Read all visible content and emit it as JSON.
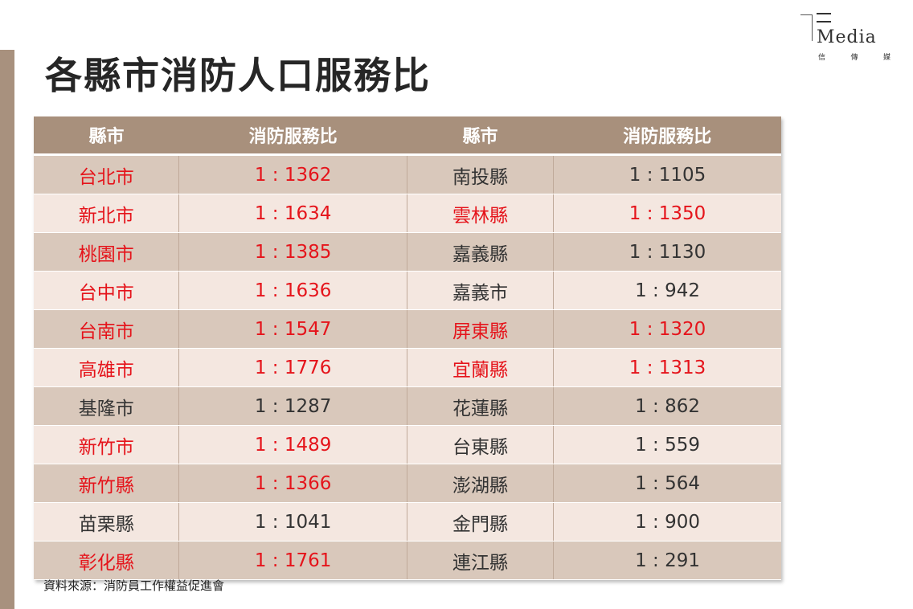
{
  "title": "各縣市消防人口服務比",
  "logo": {
    "word": "Media",
    "cn": [
      "信",
      "傳",
      "媒"
    ]
  },
  "table": {
    "headers": [
      "縣市",
      "消防服務比",
      "縣市",
      "消防服務比"
    ],
    "rows": [
      {
        "left": {
          "name": "台北市",
          "ratio": "1 : 1362",
          "highlight": true
        },
        "right": {
          "name": "南投縣",
          "ratio": "1 : 1105",
          "highlight": false
        }
      },
      {
        "left": {
          "name": "新北市",
          "ratio": "1 : 1634",
          "highlight": true
        },
        "right": {
          "name": "雲林縣",
          "ratio": "1 : 1350",
          "highlight": true
        }
      },
      {
        "left": {
          "name": "桃園市",
          "ratio": "1 : 1385",
          "highlight": true
        },
        "right": {
          "name": "嘉義縣",
          "ratio": "1 : 1130",
          "highlight": false
        }
      },
      {
        "left": {
          "name": "台中市",
          "ratio": "1 : 1636",
          "highlight": true
        },
        "right": {
          "name": "嘉義市",
          "ratio": "1 : 942",
          "highlight": false
        }
      },
      {
        "left": {
          "name": "台南市",
          "ratio": "1 : 1547",
          "highlight": true
        },
        "right": {
          "name": "屏東縣",
          "ratio": "1 : 1320",
          "highlight": true
        }
      },
      {
        "left": {
          "name": "高雄市",
          "ratio": "1 : 1776",
          "highlight": true
        },
        "right": {
          "name": "宜蘭縣",
          "ratio": "1 : 1313",
          "highlight": true
        }
      },
      {
        "left": {
          "name": "基隆市",
          "ratio": "1 : 1287",
          "highlight": false
        },
        "right": {
          "name": "花蓮縣",
          "ratio": "1 : 862",
          "highlight": false
        }
      },
      {
        "left": {
          "name": "新竹市",
          "ratio": "1 : 1489",
          "highlight": true
        },
        "right": {
          "name": "台東縣",
          "ratio": "1 : 559",
          "highlight": false
        }
      },
      {
        "left": {
          "name": "新竹縣",
          "ratio": "1 : 1366",
          "highlight": true
        },
        "right": {
          "name": "澎湖縣",
          "ratio": "1 : 564",
          "highlight": false
        }
      },
      {
        "left": {
          "name": "苗栗縣",
          "ratio": "1 : 1041",
          "highlight": false
        },
        "right": {
          "name": "金門縣",
          "ratio": "1 : 900",
          "highlight": false
        }
      },
      {
        "left": {
          "name": "彰化縣",
          "ratio": "1 : 1761",
          "highlight": true
        },
        "right": {
          "name": "連江縣",
          "ratio": "1 : 291",
          "highlight": false
        }
      }
    ]
  },
  "source": "資料來源：消防員工作權益促進會",
  "colors": {
    "header": "#a8907c",
    "highlight": "#e5141b",
    "normal": "#333333",
    "row_odd": "#d9c8bb",
    "row_even": "#f4e7e0"
  }
}
